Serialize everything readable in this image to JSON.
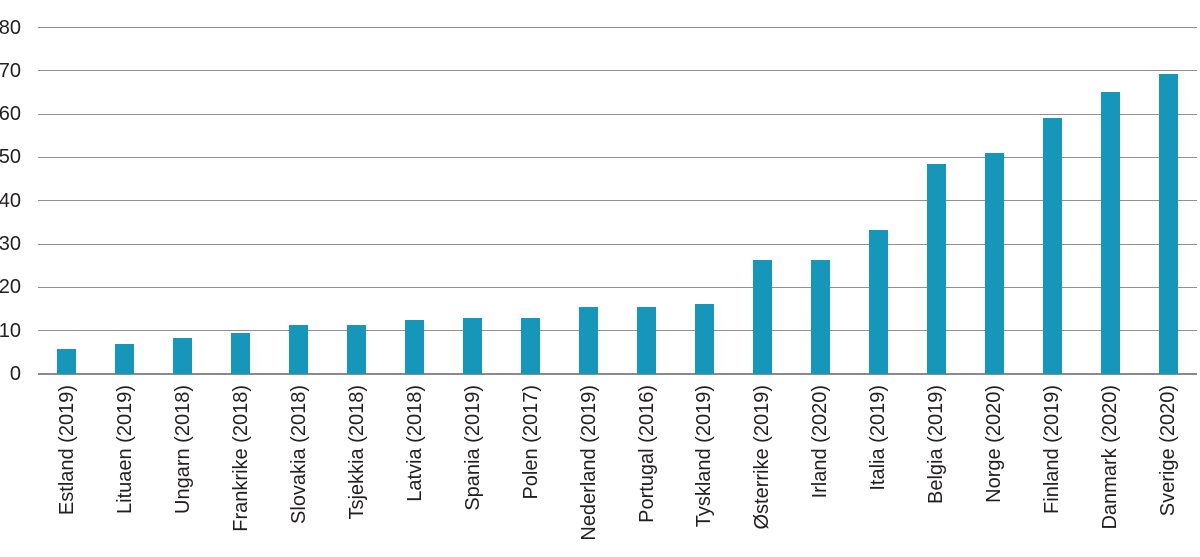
{
  "chart_data": {
    "type": "bar",
    "categories": [
      "Estland (2019)",
      "Lituaen (2019)",
      "Ungarn (2018)",
      "Frankrike (2018)",
      "Slovakia (2018)",
      "Tsjekkia (2018)",
      "Latvia (2018)",
      "Spania (2019)",
      "Polen (2017)",
      "Nederland (2019)",
      "Portugal (2016)",
      "Tyskland (2019)",
      "Østerrike (2019)",
      "Irland (2020)",
      "Italia (2019)",
      "Belgia (2019)",
      "Norge (2020)",
      "Finland (2019)",
      "Danmark (2020)",
      "Sverige (2020)"
    ],
    "values": [
      5.8,
      7.0,
      8.2,
      9.5,
      11.3,
      11.3,
      12.4,
      13.0,
      13.0,
      15.4,
      15.5,
      16.2,
      26.3,
      26.3,
      33.3,
      48.6,
      51.0,
      59.0,
      65.0,
      69.2
    ],
    "xlabel": "",
    "ylabel": "",
    "ylim": [
      0,
      80
    ],
    "yticks": [
      0,
      10,
      20,
      30,
      40,
      50,
      60,
      70,
      80
    ],
    "grid": "horizontal",
    "legend": "none",
    "bar_color": "#1696b9",
    "gridline_color": "#919191",
    "axis_text_color": "#231f20"
  }
}
